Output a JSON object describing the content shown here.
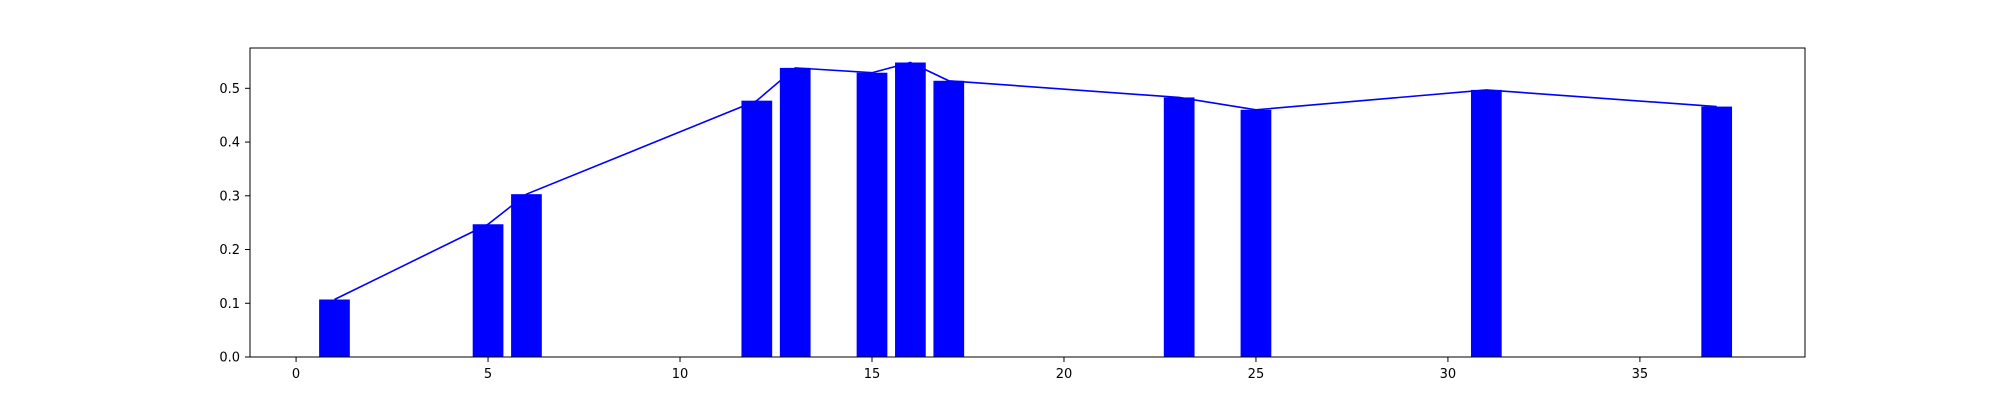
{
  "chart_data": {
    "type": "bar",
    "x": [
      1,
      5,
      6,
      12,
      13,
      15,
      16,
      17,
      23,
      25,
      31,
      37
    ],
    "series": [
      {
        "type": "bar",
        "values": [
          0.107,
          0.247,
          0.303,
          0.477,
          0.538,
          0.529,
          0.548,
          0.514,
          0.483,
          0.46,
          0.497,
          0.466
        ]
      },
      {
        "type": "line",
        "values": [
          0.107,
          0.247,
          0.303,
          0.477,
          0.538,
          0.529,
          0.548,
          0.514,
          0.483,
          0.46,
          0.497,
          0.466
        ]
      }
    ],
    "bar_width": 0.8,
    "xlim": [
      -1.2,
      39.3
    ],
    "ylim": [
      0,
      0.575
    ],
    "xticks": [
      0,
      5,
      10,
      15,
      20,
      25,
      30,
      35
    ],
    "xtick_labels": [
      "0",
      "5",
      "10",
      "15",
      "20",
      "25",
      "30",
      "35"
    ],
    "yticks": [
      0.0,
      0.1,
      0.2,
      0.3,
      0.4,
      0.5
    ],
    "ytick_labels": [
      "0.0",
      "0.1",
      "0.2",
      "0.3",
      "0.4",
      "0.5"
    ],
    "title": "",
    "xlabel": "",
    "ylabel": "",
    "grid": false,
    "colors": {
      "bar": "#0000ff",
      "line": "#0000ff"
    }
  }
}
